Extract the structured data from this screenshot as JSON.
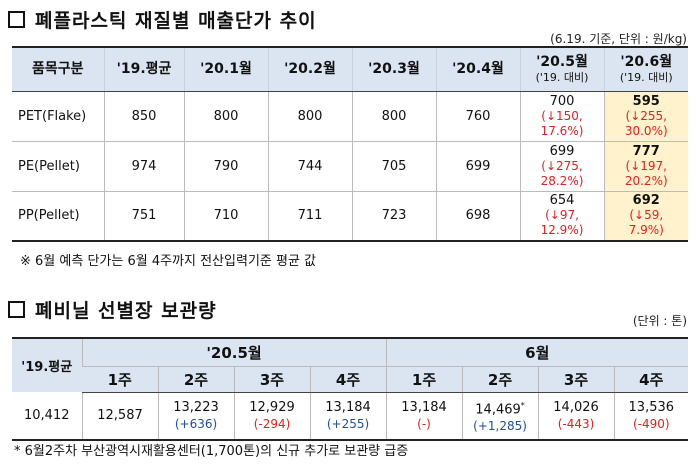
{
  "section1": {
    "title": "폐플라스틱 재질별 매출단가 추이",
    "unit_note": "(6.19. 기준, 단위 : 원/kg)",
    "headers": {
      "item": "품목구분",
      "avg19": "'19.평균",
      "m1": "'20.1월",
      "m2": "'20.2월",
      "m3": "'20.3월",
      "m4": "'20.4월",
      "m5": "'20.5월",
      "m5_sub": "('19. 대비)",
      "m6": "'20.6월",
      "m6_sub": "('19. 대비)"
    },
    "rows": [
      {
        "name": "PET(Flake)",
        "avg19": "850",
        "m1": "800",
        "m2": "800",
        "m3": "800",
        "m4": "760",
        "m5": "700",
        "m5_chg": "(↓150,",
        "m5_pct": "17.6%)",
        "m6": "595",
        "m6_chg": "(↓255,",
        "m6_pct": "30.0%)"
      },
      {
        "name": "PE(Pellet)",
        "avg19": "974",
        "m1": "790",
        "m2": "744",
        "m3": "705",
        "m4": "699",
        "m5": "699",
        "m5_chg": "(↓275,",
        "m5_pct": "28.2%)",
        "m6": "777",
        "m6_chg": "(↓197,",
        "m6_pct": "20.2%)"
      },
      {
        "name": "PP(Pellet)",
        "avg19": "751",
        "m1": "710",
        "m2": "711",
        "m3": "723",
        "m4": "698",
        "m5": "654",
        "m5_chg": "(↓97,",
        "m5_pct": "12.9%)",
        "m6": "692",
        "m6_chg": "(↓59,",
        "m6_pct": "7.9%)"
      }
    ],
    "footnote": "※ 6월 예측 단가는 6월 4주까지 전산입력기준 평균 값"
  },
  "section2": {
    "title": "폐비닐 선별장 보관량",
    "unit_note": "(단위 : 톤)",
    "headers": {
      "avg19": "'19.평균",
      "may": "'20.5월",
      "jun": "6월",
      "w1": "1주",
      "w2": "2주",
      "w3": "3주",
      "w4": "4주"
    },
    "data": {
      "avg19": "10,412",
      "may": [
        {
          "v": "12,587",
          "chg": ""
        },
        {
          "v": "13,223",
          "chg": "(+636)"
        },
        {
          "v": "12,929",
          "chg": "(-294)"
        },
        {
          "v": "13,184",
          "chg": "(+255)"
        }
      ],
      "jun": [
        {
          "v": "13,184",
          "chg": "(-)"
        },
        {
          "v": "14,469",
          "mark": "*",
          "chg": "(+1,285)"
        },
        {
          "v": "14,026",
          "chg": "(-443)"
        },
        {
          "v": "13,536",
          "chg": "(-490)"
        }
      ]
    },
    "footnote": "* 6월2주차 부산광역시재활용센터(1,700톤)의 신규 추가로 보관량 급증"
  }
}
